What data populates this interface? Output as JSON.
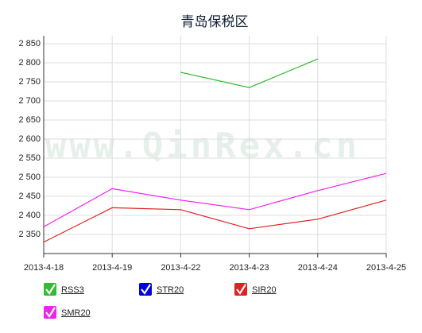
{
  "chart_data": {
    "type": "line",
    "title": "青岛保税区",
    "watermark": "www.QinRex.cn",
    "categories": [
      "2013-4-18",
      "2013-4-19",
      "2013-4-22",
      "2013-4-23",
      "2013-4-24",
      "2013-4-25"
    ],
    "series": [
      {
        "name": "RSS3",
        "color": "#33bb33",
        "values": [
          null,
          null,
          2775,
          2735,
          2810,
          null
        ]
      },
      {
        "name": "STR20",
        "color": "#0000dd",
        "values": [
          null,
          null,
          null,
          null,
          null,
          null
        ]
      },
      {
        "name": "SIR20",
        "color": "#dd2222",
        "values": [
          2330,
          2420,
          2415,
          2365,
          2390,
          2440
        ]
      },
      {
        "name": "SMR20",
        "color": "#ee22ee",
        "values": [
          2370,
          2470,
          2440,
          2415,
          2465,
          2510
        ]
      }
    ],
    "ylim": [
      2300,
      2850
    ],
    "yticks": [
      {
        "value": 2350,
        "label": "2 350"
      },
      {
        "value": 2400,
        "label": "2 400"
      },
      {
        "value": 2450,
        "label": "2 450"
      },
      {
        "value": 2500,
        "label": "2 500"
      },
      {
        "value": 2550,
        "label": "2 550"
      },
      {
        "value": 2600,
        "label": "2 600"
      },
      {
        "value": 2650,
        "label": "2 650"
      },
      {
        "value": 2700,
        "label": "2 700"
      },
      {
        "value": 2750,
        "label": "2 750"
      },
      {
        "value": 2800,
        "label": "2 800"
      },
      {
        "value": 2850,
        "label": "2 850"
      }
    ],
    "grid": true
  }
}
